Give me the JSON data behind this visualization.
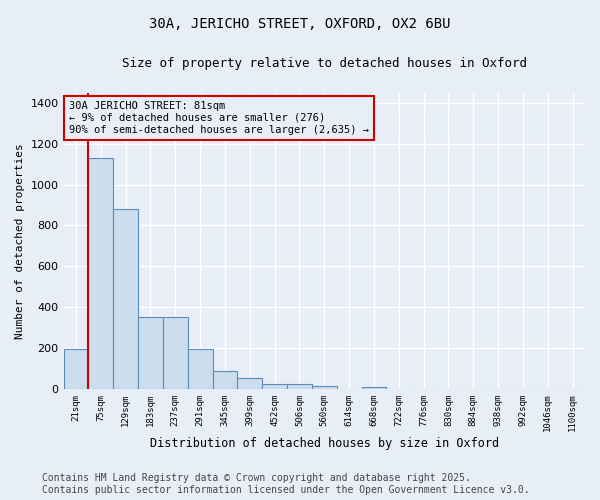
{
  "title_line1": "30A, JERICHO STREET, OXFORD, OX2 6BU",
  "title_line2": "Size of property relative to detached houses in Oxford",
  "xlabel": "Distribution of detached houses by size in Oxford",
  "ylabel": "Number of detached properties",
  "bar_color": "#ccdded",
  "bar_edge_color": "#5b8db8",
  "background_color": "#e8eef8",
  "grid_color": "#ffffff",
  "annotation_box_color": "#cc0000",
  "vline_color": "#cc0000",
  "vline_x": 0.5,
  "annotation_text": "30A JERICHO STREET: 81sqm\n← 9% of detached houses are smaller (276)\n90% of semi-detached houses are larger (2,635) →",
  "categories": [
    "21sqm",
    "75sqm",
    "129sqm",
    "183sqm",
    "237sqm",
    "291sqm",
    "345sqm",
    "399sqm",
    "452sqm",
    "506sqm",
    "560sqm",
    "614sqm",
    "668sqm",
    "722sqm",
    "776sqm",
    "830sqm",
    "884sqm",
    "938sqm",
    "992sqm",
    "1046sqm",
    "1100sqm"
  ],
  "values": [
    193,
    1130,
    880,
    350,
    350,
    195,
    90,
    55,
    22,
    22,
    15,
    0,
    12,
    0,
    0,
    0,
    0,
    0,
    0,
    0,
    0
  ],
  "ylim": [
    0,
    1450
  ],
  "yticks": [
    0,
    200,
    400,
    600,
    800,
    1000,
    1200,
    1400
  ],
  "footnote": "Contains HM Land Registry data © Crown copyright and database right 2025.\nContains public sector information licensed under the Open Government Licence v3.0.",
  "footnote_fontsize": 7.0,
  "title1_fontsize": 10,
  "title2_fontsize": 9,
  "ylabel_fontsize": 8,
  "xlabel_fontsize": 8.5,
  "ytick_fontsize": 8,
  "xtick_fontsize": 6.5,
  "annot_fontsize": 7.5
}
